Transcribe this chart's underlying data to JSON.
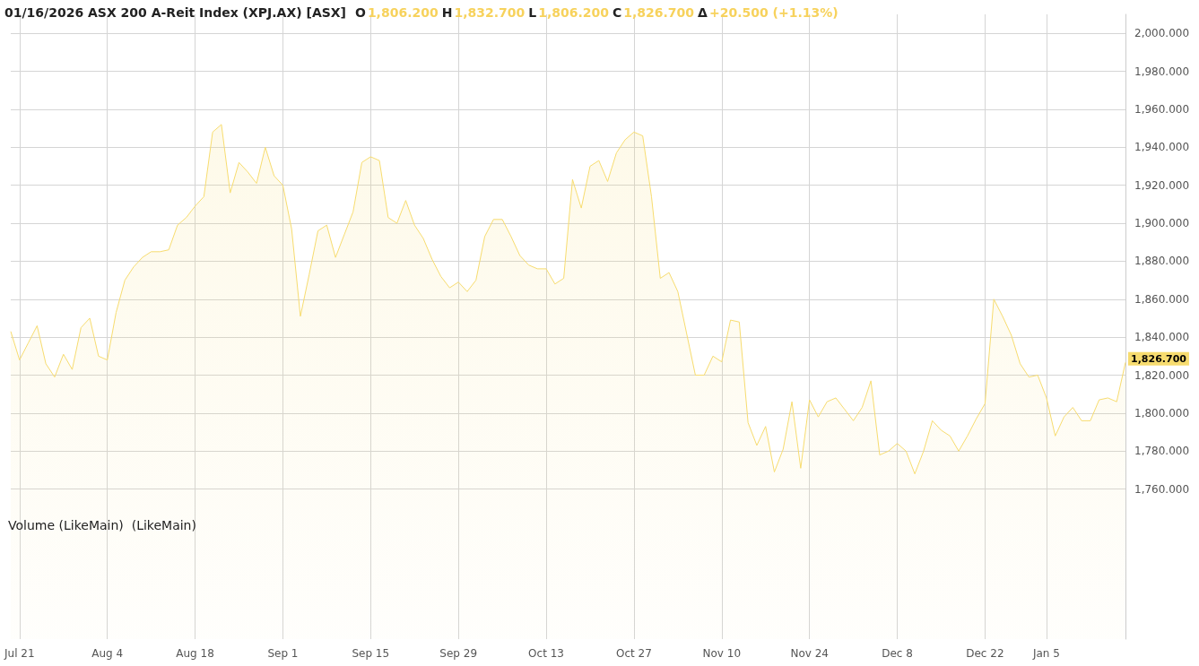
{
  "chart_data": {
    "type": "area",
    "title": "01/16/2026 ASX 200 A-Reit Index (XPJ.AX) [ASX]",
    "annotations": [
      "O",
      "1,806.200",
      "H",
      "1,832.700",
      "L",
      "1,806.200",
      "C",
      "1,826.700",
      "Δ",
      "+20.500 (+1.13%)",
      "Volume (LikeMain)  (LikeMain)"
    ],
    "categories": [
      null,
      "Jul 21",
      null,
      null,
      null,
      null,
      null,
      null,
      null,
      null,
      null,
      "Aug 4",
      null,
      null,
      null,
      null,
      null,
      null,
      null,
      null,
      null,
      "Aug 18",
      null,
      null,
      null,
      null,
      null,
      null,
      null,
      null,
      null,
      "Sep 1",
      null,
      null,
      null,
      null,
      null,
      null,
      null,
      null,
      null,
      "Sep 15",
      null,
      null,
      null,
      null,
      null,
      null,
      null,
      null,
      null,
      "Sep 29",
      null,
      null,
      null,
      null,
      null,
      null,
      null,
      null,
      null,
      "Oct 13",
      null,
      null,
      null,
      null,
      null,
      null,
      null,
      null,
      null,
      "Oct 27",
      null,
      null,
      null,
      null,
      null,
      null,
      null,
      null,
      null,
      "Nov 10",
      null,
      null,
      null,
      null,
      null,
      null,
      null,
      null,
      null,
      "Nov 24",
      null,
      null,
      null,
      null,
      null,
      null,
      null,
      null,
      null,
      "Dec 8",
      null,
      null,
      null,
      null,
      null,
      null,
      null,
      null,
      null,
      "Dec 22",
      null,
      null,
      null,
      null,
      null,
      null,
      "Jan 5",
      null,
      null,
      null,
      null,
      null,
      null,
      null,
      null,
      null
    ],
    "series": [
      {
        "color": "#f7dc6f",
        "values": [
          1843,
          1828,
          1837,
          1846,
          1826,
          1819,
          1831,
          1823,
          1845,
          1850,
          1830,
          1828,
          1853,
          1870,
          1877,
          1882,
          1885,
          1885,
          1886,
          1899,
          1903,
          1909,
          1914,
          1948,
          1952,
          1916,
          1932,
          1927,
          1921,
          1940,
          1925,
          1920,
          1897,
          1851,
          1873,
          1896,
          1899,
          1882,
          1894,
          1906,
          1932,
          1935,
          1933,
          1903,
          1900,
          1912,
          1899,
          1892,
          1881,
          1872,
          1866,
          1869,
          1864,
          1870,
          1893,
          1902,
          1902,
          1893,
          1883,
          1878,
          1876,
          1876,
          1868,
          1871,
          1923,
          1908,
          1930,
          1933,
          1922,
          1937,
          1944,
          1948,
          1946,
          1914,
          1871,
          1874,
          1864,
          1842,
          1820,
          1820,
          1830,
          1827,
          1849,
          1848,
          1795,
          1783,
          1793,
          1769,
          1781,
          1806,
          1771,
          1807,
          1798,
          1806,
          1808,
          1802,
          1796,
          1803,
          1817,
          1778,
          1780,
          1784,
          1780,
          1768,
          1780,
          1796,
          1791,
          1788,
          1780,
          1788,
          1797,
          1805,
          1860,
          1851,
          1841,
          1826,
          1819,
          1820,
          1808,
          1788,
          1798,
          1803,
          1796,
          1796,
          1807,
          1808,
          1806,
          1826.7
        ],
        "value_labels": [
          null,
          null,
          null,
          null,
          null,
          null,
          null,
          null,
          null,
          null,
          null,
          null,
          null,
          null,
          null,
          null,
          null,
          null,
          null,
          null,
          null,
          null,
          null,
          null,
          null,
          null,
          null,
          null,
          null,
          null,
          null,
          null,
          null,
          null,
          null,
          null,
          null,
          null,
          null,
          null,
          null,
          null,
          null,
          null,
          null,
          null,
          null,
          null,
          null,
          null,
          null,
          null,
          null,
          null,
          null,
          null,
          null,
          null,
          null,
          null,
          null,
          null,
          null,
          null,
          null,
          null,
          null,
          null,
          null,
          null,
          null,
          null,
          null,
          null,
          null,
          null,
          null,
          null,
          null,
          null,
          null,
          null,
          null,
          null,
          null,
          null,
          null,
          null,
          null,
          null,
          null,
          null,
          null,
          null,
          null,
          null,
          null,
          null,
          null,
          null,
          null,
          null,
          null,
          null,
          null,
          null,
          null,
          null,
          null,
          null,
          null,
          null,
          null,
          null,
          null,
          null,
          null,
          null,
          null,
          null,
          null,
          null,
          null,
          null,
          null,
          null,
          null,
          "1,826.700"
        ]
      }
    ],
    "ylim": [
      1681,
      2010
    ],
    "yticks": [
      {
        "value": 1760,
        "label": "1,760.000"
      },
      {
        "value": 1780,
        "label": "1,780.000"
      },
      {
        "value": 1800,
        "label": "1,800.000"
      },
      {
        "value": 1820,
        "label": "1,820.000"
      },
      {
        "value": 1840,
        "label": "1,840.000"
      },
      {
        "value": 1860,
        "label": "1,860.000"
      },
      {
        "value": 1880,
        "label": "1,880.000"
      },
      {
        "value": 1900,
        "label": "1,900.000"
      },
      {
        "value": 1920,
        "label": "1,920.000"
      },
      {
        "value": 1940,
        "label": "1,940.000"
      },
      {
        "value": 1960,
        "label": "1,960.000"
      },
      {
        "value": 1980,
        "label": "1,980.000"
      },
      {
        "value": 2000,
        "label": "2,000.000"
      }
    ],
    "grid": true,
    "marker": "none"
  }
}
